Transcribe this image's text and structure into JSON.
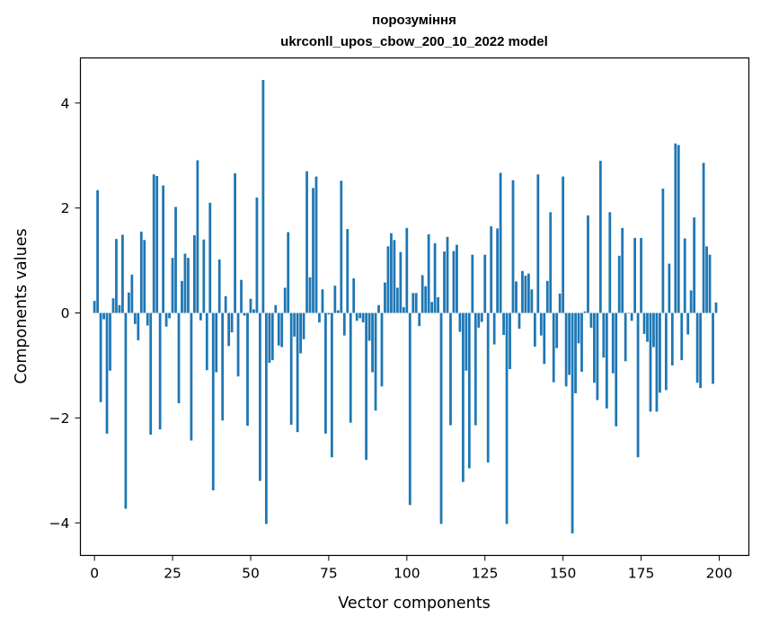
{
  "chart_data": {
    "type": "bar",
    "title": "порозуміння",
    "subtitle": "ukrconll_upos_cbow_200_10_2022 model",
    "xlabel": "Vector components",
    "ylabel": "Components values",
    "xlim": [
      -4.5,
      209.5
    ],
    "ylim": [
      -4.62,
      4.86
    ],
    "xticks": [
      0,
      25,
      50,
      75,
      100,
      125,
      150,
      175,
      200
    ],
    "yticks": [
      -4,
      -2,
      0,
      2,
      4
    ],
    "xtick_labels": [
      "0",
      "25",
      "50",
      "75",
      "100",
      "125",
      "150",
      "175",
      "200"
    ],
    "ytick_labels": [
      "−4",
      "−2",
      "0",
      "2",
      "4"
    ],
    "grid": false,
    "bar_color": "#1f77b4",
    "values": [
      0.23,
      2.34,
      -1.7,
      -0.12,
      -2.3,
      -1.1,
      0.28,
      1.41,
      0.15,
      1.49,
      -3.73,
      0.39,
      0.73,
      -0.21,
      -0.52,
      1.55,
      1.39,
      -0.24,
      -2.32,
      2.64,
      2.61,
      -2.22,
      2.43,
      -0.26,
      -0.1,
      1.05,
      2.02,
      -1.72,
      0.61,
      1.13,
      1.05,
      -2.43,
      1.48,
      2.91,
      -0.14,
      1.4,
      -1.09,
      2.1,
      -3.38,
      -1.13,
      1.02,
      -2.05,
      0.32,
      -0.63,
      -0.37,
      2.66,
      -1.21,
      0.63,
      -0.05,
      -2.15,
      0.27,
      0.07,
      2.2,
      -3.2,
      4.44,
      -4.02,
      -0.95,
      -0.9,
      0.15,
      -0.62,
      -0.65,
      0.48,
      1.54,
      -2.13,
      -0.45,
      -2.27,
      -0.77,
      -0.5,
      2.7,
      0.68,
      2.38,
      2.6,
      -0.18,
      0.45,
      -2.3,
      -0.03,
      -2.75,
      0.52,
      0.05,
      2.52,
      -0.43,
      1.6,
      -2.09,
      0.66,
      -0.15,
      -0.1,
      -0.18,
      -2.8,
      -0.53,
      -1.13,
      -1.86,
      0.15,
      -1.4,
      0.58,
      1.27,
      1.52,
      1.39,
      0.48,
      1.16,
      0.11,
      1.62,
      -3.66,
      0.38,
      0.38,
      -0.25,
      0.72,
      0.51,
      1.5,
      0.21,
      1.33,
      0.3,
      -4.02,
      1.17,
      1.45,
      -2.14,
      1.18,
      1.3,
      -0.36,
      -3.22,
      -1.1,
      -2.96,
      1.11,
      -2.14,
      -0.28,
      -0.17,
      1.11,
      -2.85,
      1.65,
      -0.6,
      1.61,
      2.67,
      -0.42,
      -4.02,
      -1.07,
      2.53,
      0.6,
      -0.3,
      0.8,
      0.71,
      0.75,
      0.45,
      -0.64,
      2.64,
      -0.43,
      -0.97,
      0.61,
      1.92,
      -1.32,
      -0.67,
      0.37,
      2.6,
      -1.4,
      -1.18,
      -4.2,
      -1.53,
      -0.58,
      -1.12,
      0.03,
      1.86,
      -0.28,
      -1.33,
      -1.66,
      2.9,
      -0.85,
      -1.82,
      1.92,
      -1.15,
      -2.16,
      1.09,
      1.62,
      -0.92,
      -0.01,
      -0.15,
      1.43,
      -2.75,
      1.43,
      -0.4,
      -0.55,
      -1.88,
      -0.65,
      -1.88,
      -1.52,
      2.37,
      -1.47,
      0.94,
      -1.0,
      3.23,
      3.2,
      -0.9,
      1.42,
      -0.41,
      0.43,
      1.82,
      -1.33,
      -1.43,
      2.86,
      1.27,
      1.11,
      -1.35,
      0.2
    ]
  }
}
